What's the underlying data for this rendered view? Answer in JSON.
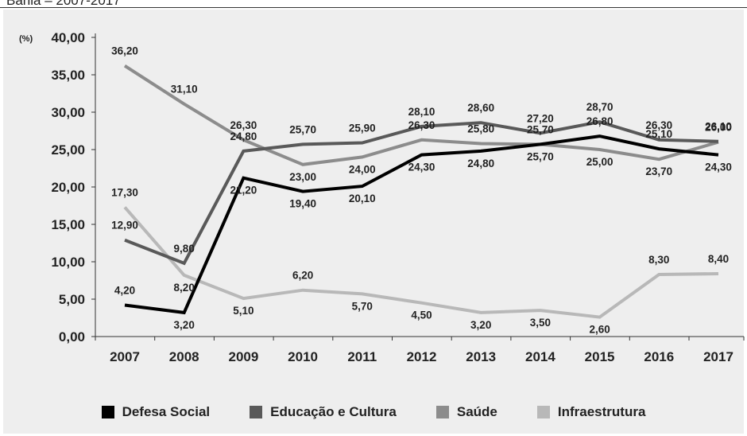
{
  "caption": "Bahia – 2007-2017",
  "chart_data": {
    "type": "line",
    "title": "",
    "xlabel": "",
    "ylabel": "",
    "unit_label": "(%)",
    "categories": [
      "2007",
      "2008",
      "2009",
      "2010",
      "2011",
      "2012",
      "2013",
      "2014",
      "2015",
      "2016",
      "2017"
    ],
    "ylim": [
      0,
      40
    ],
    "yticks": [
      "0,00",
      "5,00",
      "10,00",
      "15,00",
      "20,00",
      "25,00",
      "30,00",
      "35,00",
      "40,00"
    ],
    "grid": false,
    "legend_position": "bottom",
    "series": [
      {
        "name": "Defesa Social",
        "color": "#000000",
        "values": [
          4.2,
          3.2,
          21.2,
          19.4,
          20.1,
          24.3,
          24.8,
          25.7,
          26.8,
          25.1,
          24.3
        ],
        "labels": [
          "4,20",
          "3,20",
          "21,20",
          "19,40",
          "20,10",
          "24,30",
          "24,80",
          "25,70",
          "26,80",
          "25,10",
          "24,30"
        ]
      },
      {
        "name": "Educação e Cultura",
        "color": "#595959",
        "values": [
          12.9,
          9.8,
          24.8,
          25.7,
          25.9,
          28.1,
          28.6,
          27.2,
          28.7,
          26.3,
          26.1
        ],
        "labels": [
          "12,90",
          "9,80",
          "24,80",
          "25,70",
          "25,90",
          "28,10",
          "28,60",
          "27,20",
          "28,70",
          "26,30",
          "26,10"
        ]
      },
      {
        "name": "Saúde",
        "color": "#8c8c8c",
        "values": [
          36.2,
          31.1,
          26.3,
          23.0,
          24.0,
          26.3,
          25.8,
          25.7,
          25.0,
          23.7,
          26.0
        ],
        "labels": [
          "36,20",
          "31,10",
          "26,30",
          "23,00",
          "24,00",
          "26,30",
          "25,80",
          "25,70",
          "25,00",
          "23,70",
          "26,00"
        ]
      },
      {
        "name": "Infraestrutura",
        "color": "#b8b8b8",
        "values": [
          17.3,
          8.2,
          5.1,
          6.2,
          5.7,
          4.5,
          3.2,
          3.5,
          2.6,
          8.3,
          8.4
        ],
        "labels": [
          "17,30",
          "8,20",
          "5,10",
          "6,20",
          "5,70",
          "4,50",
          "3,20",
          "3,50",
          "2,60",
          "8,30",
          "8,40"
        ]
      }
    ]
  }
}
